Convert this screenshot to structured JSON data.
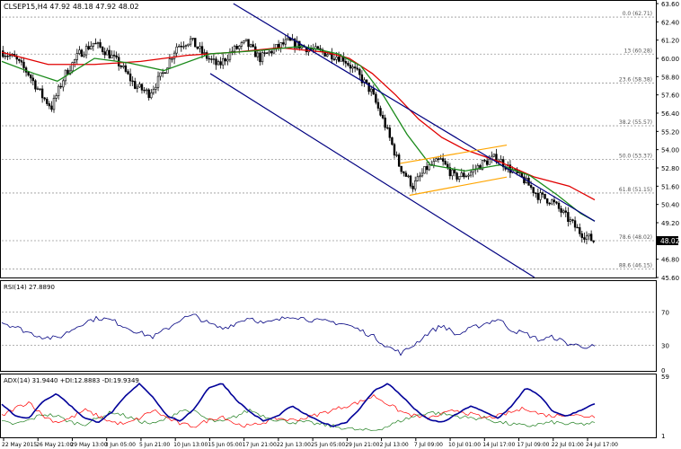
{
  "header": {
    "symbol_info": "CLSEP15,H4  47.92 48.18 47.92 48.02",
    "last_price": "48.02"
  },
  "colors": {
    "candle": "#000000",
    "ma_fast": "#1a8a1a",
    "ma_slow": "#e00000",
    "channel": "#000080",
    "flag": "#ffa500",
    "rsi": "#000080",
    "adx": "#000099",
    "plus_di": "#1f7f1f",
    "minus_di": "#ff0000",
    "grid": "#999999"
  },
  "chart_data": [
    {
      "type": "candlestick",
      "pane": "price",
      "title": "CLSEP15,H4",
      "y_ticks": [
        "63.60",
        "62.40",
        "61.20",
        "60.00",
        "58.80",
        "57.60",
        "56.40",
        "55.20",
        "54.00",
        "52.80",
        "51.60",
        "50.40",
        "49.20",
        "48.00",
        "46.80",
        "45.60"
      ],
      "ylim": [
        45.6,
        63.6
      ],
      "x_ticks": [
        "22 May 2015",
        "26 May 21:00",
        "29 May 13:00",
        "3 Jun 05:00",
        "5 Jun 21:00",
        "10 Jun 13:00",
        "15 Jun 05:00",
        "17 Jun 21:00",
        "22 Jun 13:00",
        "25 Jun 05:00",
        "29 Jun 21:00",
        "2 Jul 13:00",
        "7 Jul 09:00",
        "10 Jul 01:00",
        "14 Jul 17:00",
        "17 Jul 09:00",
        "22 Jul 01:00",
        "24 Jul 17:00"
      ],
      "close_path": [
        [
          0,
          60.5
        ],
        [
          6,
          60.0
        ],
        [
          12,
          59.0
        ],
        [
          18,
          57.5
        ],
        [
          22,
          56.8
        ],
        [
          28,
          59.0
        ],
        [
          34,
          60.3
        ],
        [
          40,
          61.0
        ],
        [
          46,
          60.4
        ],
        [
          52,
          59.5
        ],
        [
          58,
          58.2
        ],
        [
          64,
          57.7
        ],
        [
          70,
          59.0
        ],
        [
          76,
          60.8
        ],
        [
          82,
          61.2
        ],
        [
          88,
          60.2
        ],
        [
          94,
          59.5
        ],
        [
          100,
          60.5
        ],
        [
          106,
          61.0
        ],
        [
          112,
          60.0
        ],
        [
          118,
          60.6
        ],
        [
          124,
          61.1
        ],
        [
          130,
          60.8
        ],
        [
          136,
          60.5
        ],
        [
          142,
          60.3
        ],
        [
          148,
          60.0
        ],
        [
          154,
          59.0
        ],
        [
          160,
          57.8
        ],
        [
          166,
          55.6
        ],
        [
          172,
          53.0
        ],
        [
          178,
          51.6
        ],
        [
          184,
          52.8
        ],
        [
          190,
          53.3
        ],
        [
          196,
          52.2
        ],
        [
          202,
          52.4
        ],
        [
          208,
          53.1
        ],
        [
          214,
          53.5
        ],
        [
          220,
          52.7
        ],
        [
          226,
          52.0
        ],
        [
          232,
          51.0
        ],
        [
          238,
          50.6
        ],
        [
          244,
          49.6
        ],
        [
          250,
          48.6
        ],
        [
          256,
          48.0
        ]
      ],
      "ma_fast": [
        [
          0,
          59.8
        ],
        [
          14,
          59.0
        ],
        [
          24,
          58.5
        ],
        [
          40,
          60.0
        ],
        [
          55,
          59.7
        ],
        [
          70,
          59.2
        ],
        [
          90,
          60.3
        ],
        [
          110,
          60.5
        ],
        [
          130,
          60.8
        ],
        [
          145,
          60.3
        ],
        [
          155,
          59.5
        ],
        [
          165,
          57.5
        ],
        [
          175,
          55.0
        ],
        [
          185,
          53.0
        ],
        [
          200,
          52.6
        ],
        [
          215,
          53.0
        ],
        [
          228,
          52.3
        ],
        [
          240,
          51.0
        ],
        [
          250,
          49.8
        ],
        [
          256,
          49.3
        ]
      ],
      "ma_slow": [
        [
          0,
          60.4
        ],
        [
          20,
          59.6
        ],
        [
          40,
          59.6
        ],
        [
          60,
          59.8
        ],
        [
          80,
          60.2
        ],
        [
          100,
          60.4
        ],
        [
          120,
          60.7
        ],
        [
          140,
          60.4
        ],
        [
          150,
          60.0
        ],
        [
          160,
          59.0
        ],
        [
          170,
          57.6
        ],
        [
          180,
          56.0
        ],
        [
          190,
          54.8
        ],
        [
          200,
          54.0
        ],
        [
          215,
          53.2
        ],
        [
          230,
          52.2
        ],
        [
          245,
          51.6
        ],
        [
          256,
          50.7
        ]
      ],
      "channel_upper": [
        [
          100,
          63.6
        ],
        [
          256,
          49.3
        ]
      ],
      "channel_lower": [
        [
          90,
          59.0
        ],
        [
          230,
          45.6
        ]
      ],
      "flag_upper": [
        [
          172,
          53.1
        ],
        [
          218,
          54.3
        ]
      ],
      "flag_lower": [
        [
          176,
          51.0
        ],
        [
          218,
          52.2
        ]
      ],
      "fibonacci_levels": [
        {
          "label": "0.0 (62.71)",
          "value": 62.71
        },
        {
          "label": "13 (60.28)",
          "value": 60.28
        },
        {
          "label": "23.6 (58.38)",
          "value": 58.38
        },
        {
          "label": "38.2 (55.57)",
          "value": 55.57
        },
        {
          "label": "50.0 (53.37)",
          "value": 53.37
        },
        {
          "label": "61.8 (51.15)",
          "value": 51.15
        },
        {
          "label": "78.6 (48.02)",
          "value": 48.02
        },
        {
          "label": "88.6 (46.15)",
          "value": 46.15
        }
      ]
    },
    {
      "type": "line",
      "pane": "rsi",
      "title": "RSI(14) 27.8890",
      "ylim": [
        0,
        100
      ],
      "levels": [
        70,
        30
      ],
      "y_ticks": [
        "70",
        "30",
        "0"
      ],
      "series": [
        {
          "values": [
            58,
            52,
            45,
            40,
            38,
            48,
            58,
            63,
            60,
            52,
            45,
            40,
            50,
            62,
            66,
            56,
            50,
            57,
            64,
            56,
            60,
            66,
            62,
            59,
            58,
            55,
            48,
            40,
            28,
            20,
            32,
            46,
            54,
            42,
            50,
            56,
            62,
            48,
            44,
            36,
            40,
            32,
            29,
            28
          ]
        }
      ]
    },
    {
      "type": "line",
      "pane": "adx",
      "title": "ADX(14) 31.9440 +DI:12.8883 -DI:19.9349",
      "ylim": [
        0,
        60
      ],
      "y_ticks": [
        "59",
        "1"
      ],
      "series": [
        {
          "name": "ADX",
          "values": [
            32,
            20,
            18,
            35,
            42,
            30,
            18,
            14,
            24,
            40,
            52,
            38,
            20,
            15,
            28,
            48,
            52,
            36,
            24,
            15,
            20,
            30,
            22,
            15,
            10,
            14,
            28,
            45,
            52,
            40,
            26,
            16,
            14,
            22,
            30,
            24,
            18,
            30,
            48,
            40,
            24,
            20,
            26,
            32
          ]
        },
        {
          "name": "+DI",
          "values": [
            14,
            12,
            16,
            22,
            20,
            14,
            12,
            18,
            24,
            20,
            15,
            12,
            18,
            26,
            24,
            16,
            14,
            20,
            26,
            20,
            16,
            14,
            14,
            12,
            10,
            8,
            6,
            6,
            10,
            16,
            20,
            24,
            22,
            20,
            18,
            18,
            14,
            12,
            10,
            12,
            14,
            12,
            12,
            13
          ]
        },
        {
          "name": "-DI",
          "values": [
            20,
            28,
            34,
            20,
            14,
            18,
            26,
            20,
            14,
            12,
            18,
            26,
            18,
            12,
            10,
            16,
            20,
            12,
            10,
            14,
            18,
            16,
            18,
            22,
            26,
            30,
            34,
            40,
            32,
            24,
            20,
            18,
            22,
            26,
            22,
            18,
            20,
            24,
            28,
            22,
            20,
            22,
            20,
            20
          ]
        }
      ]
    }
  ]
}
